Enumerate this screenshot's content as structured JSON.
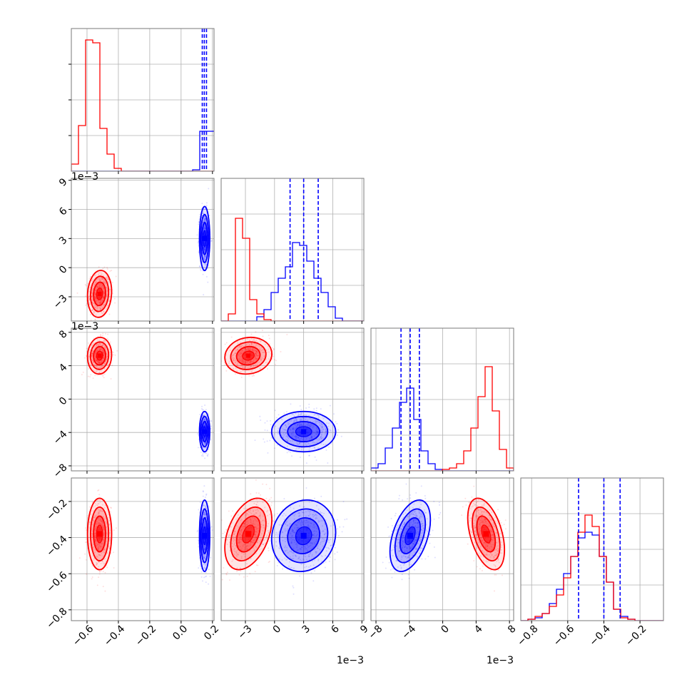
{
  "chart_data": {
    "type": "corner",
    "parameters": [
      {
        "ticks": [
          -0.6,
          -0.4,
          -0.2,
          0.0,
          0.2
        ],
        "tick_labels": [
          "−0.6",
          "−0.4",
          "−0.2",
          "0.0",
          "0.2"
        ],
        "range": [
          -0.7,
          0.21
        ],
        "offset_label": ""
      },
      {
        "ticks": [
          -3,
          0,
          3,
          6,
          9
        ],
        "tick_labels": [
          "−3",
          "0",
          "3",
          "6",
          "9"
        ],
        "range": [
          -5.5,
          9.2
        ],
        "offset_label": "1e−3"
      },
      {
        "ticks": [
          -8,
          -4,
          0,
          4,
          8
        ],
        "tick_labels": [
          "−8",
          "−4",
          "0",
          "4",
          "8"
        ],
        "range": [
          -8.6,
          8.5
        ],
        "offset_label": "1e−3"
      },
      {
        "ticks": [
          -0.8,
          -0.6,
          -0.4,
          -0.2
        ],
        "tick_labels": [
          "−0.8",
          "−0.6",
          "−0.4",
          "−0.2"
        ],
        "range": [
          -0.86,
          -0.07
        ],
        "offset_label": ""
      }
    ],
    "series": [
      {
        "color": "#ff0000",
        "means": [
          -0.52,
          -2.7,
          5.2,
          -0.38
        ],
        "sigmas": [
          0.035,
          1.1,
          1.0,
          0.09
        ],
        "corr": {
          "1-0": 0.1,
          "2-0": 0.05,
          "2-1": 0.1,
          "3-0": 0.0,
          "3-1": 0.4,
          "3-2": -0.45
        }
      },
      {
        "color": "#0000ff",
        "means": [
          0.15,
          3.0,
          -3.9,
          -0.39
        ],
        "sigmas": [
          0.015,
          1.5,
          1.1,
          0.09
        ],
        "corr": {
          "1-0": 0.0,
          "2-0": 0.0,
          "2-1": 0.0,
          "3-0": 0.0,
          "3-1": 0.1,
          "3-2": 0.45
        }
      }
    ],
    "histograms": [
      {
        "red": [
          0.05,
          0.32,
          0.92,
          0.9,
          0.3,
          0.12,
          0.02,
          0.0,
          0.0,
          0.0,
          0.0,
          0.0,
          0.0,
          0.0,
          0.0,
          0.0,
          0.0,
          0.0,
          0.0,
          0.0
        ],
        "blue": [
          0.0,
          0.0,
          0.0,
          0.0,
          0.0,
          0.0,
          0.0,
          0.0,
          0.0,
          0.0,
          0.0,
          0.0,
          0.0,
          0.0,
          0.0,
          0.0,
          0.0,
          0.01,
          0.28,
          0.28
        ],
        "blue_overflow": true
      },
      {
        "red": [
          0.0,
          0.05,
          0.72,
          0.58,
          0.15,
          0.05,
          0.01,
          0.0,
          0.0,
          0.0,
          0.0,
          0.0,
          0.0,
          0.0,
          0.0,
          0.0,
          0.0,
          0.0,
          0.0,
          0.0
        ],
        "blue": [
          0.0,
          0.0,
          0.0,
          0.0,
          0.0,
          0.03,
          0.08,
          0.2,
          0.3,
          0.38,
          0.55,
          0.53,
          0.42,
          0.3,
          0.2,
          0.1,
          0.02,
          0.0,
          0.0,
          0.0
        ]
      },
      {
        "red": [
          0.0,
          0.0,
          0.0,
          0.0,
          0.0,
          0.0,
          0.0,
          0.0,
          0.0,
          0.0,
          0.01,
          0.02,
          0.05,
          0.14,
          0.3,
          0.52,
          0.73,
          0.42,
          0.15,
          0.02
        ],
        "blue": [
          0.02,
          0.05,
          0.16,
          0.3,
          0.48,
          0.58,
          0.36,
          0.14,
          0.05,
          0.01,
          0.0,
          0.0,
          0.0,
          0.0,
          0.0,
          0.0,
          0.0,
          0.0,
          0.0,
          0.0
        ]
      },
      {
        "red": [
          0.0,
          0.01,
          0.03,
          0.05,
          0.1,
          0.18,
          0.3,
          0.45,
          0.62,
          0.74,
          0.66,
          0.45,
          0.27,
          0.08,
          0.02,
          0.01,
          0.0,
          0.0,
          0.0,
          0.0
        ],
        "blue": [
          0.0,
          0.01,
          0.02,
          0.05,
          0.12,
          0.22,
          0.33,
          0.45,
          0.58,
          0.62,
          0.6,
          0.45,
          0.27,
          0.08,
          0.03,
          0.01,
          0.0,
          0.0,
          0.0,
          0.0
        ]
      }
    ],
    "quantile_lines": [
      [
        0.135,
        0.148,
        0.162
      ],
      [
        1.6,
        3.0,
        4.5
      ],
      [
        -5.0,
        -3.9,
        -2.8
      ],
      [
        -0.54,
        -0.4,
        -0.31
      ]
    ],
    "hist_ylim": [
      0,
      1.0
    ],
    "grid": true
  }
}
